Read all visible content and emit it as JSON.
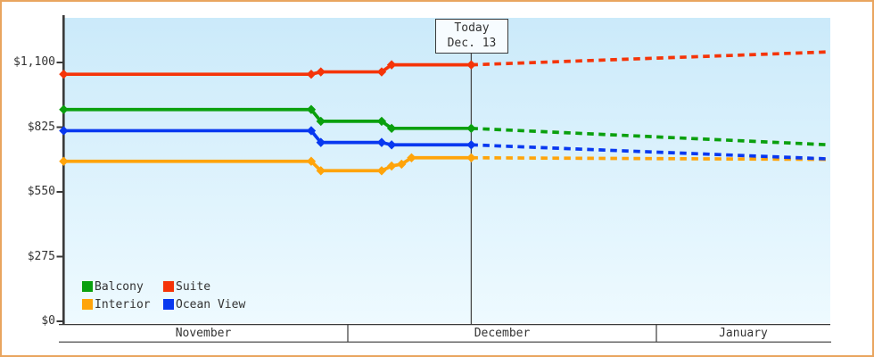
{
  "colors": {
    "frame_border": "#e9a55f",
    "plot_bg_top": "#cbeafa",
    "plot_bg_bottom": "#eefaff",
    "axis": "#3a3a3a",
    "text": "#333333",
    "today_line": "#4a4a4a"
  },
  "chart_data": {
    "type": "line",
    "title": "",
    "y_axis": {
      "ticks": [
        "$1,100",
        "$825",
        "$550",
        "$275",
        "$0"
      ],
      "tick_values": [
        1100,
        825,
        550,
        275,
        0
      ],
      "range": [
        0,
        1100
      ]
    },
    "x_axis": {
      "months": [
        "November",
        "December",
        "January"
      ],
      "today_label": [
        "Today",
        "Dec. 13"
      ],
      "today_day": 42.4
    },
    "legend_rows": [
      [
        "Balcony",
        "Suite"
      ],
      [
        "Interior",
        "Ocean View"
      ]
    ],
    "series": [
      {
        "name": "Suite",
        "color": "#f53408",
        "points_solid": [
          [
            0.5,
            1050
          ],
          [
            26.2,
            1050
          ],
          [
            27.2,
            1060
          ],
          [
            33.4,
            1060
          ],
          [
            34.4,
            1090
          ],
          [
            42.4,
            1090
          ]
        ],
        "points_projection": [
          [
            42.4,
            1090
          ],
          [
            91.8,
            1145
          ]
        ]
      },
      {
        "name": "Balcony",
        "color": "#0aa00e",
        "points_solid": [
          [
            0.5,
            900
          ],
          [
            26.2,
            900
          ],
          [
            27.2,
            850
          ],
          [
            33.4,
            850
          ],
          [
            34.4,
            820
          ],
          [
            42.4,
            820
          ]
        ],
        "points_projection": [
          [
            42.4,
            820
          ],
          [
            91.8,
            750
          ]
        ]
      },
      {
        "name": "Interior",
        "color": "#ffa40a",
        "points_solid": [
          [
            0.5,
            680
          ],
          [
            26.2,
            680
          ],
          [
            27.2,
            640
          ],
          [
            33.4,
            640
          ],
          [
            34.4,
            660
          ],
          [
            35.4,
            668
          ],
          [
            36.4,
            695
          ],
          [
            42.4,
            695
          ]
        ],
        "points_projection": [
          [
            42.4,
            695
          ],
          [
            91.8,
            688
          ]
        ]
      },
      {
        "name": "Ocean View",
        "color": "#0838f0",
        "points_solid": [
          [
            0.5,
            810
          ],
          [
            26.2,
            810
          ],
          [
            27.2,
            760
          ],
          [
            33.4,
            760
          ],
          [
            34.4,
            750
          ],
          [
            42.4,
            750
          ]
        ],
        "points_projection": [
          [
            42.4,
            750
          ],
          [
            91.8,
            690
          ]
        ]
      }
    ]
  }
}
